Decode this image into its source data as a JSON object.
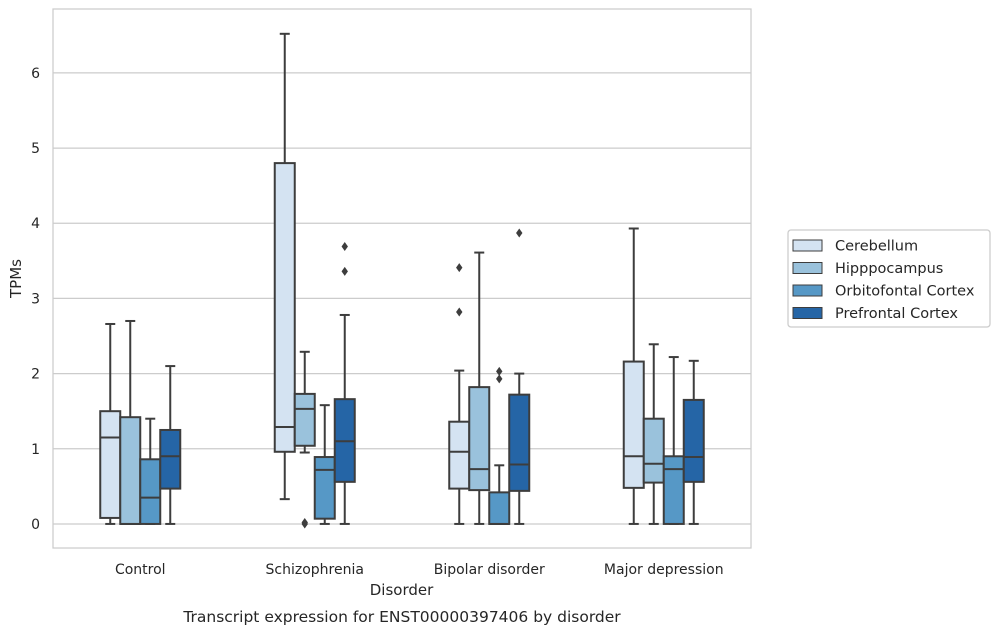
{
  "chart_data": {
    "type": "box",
    "xlabel": "Disorder",
    "ylabel": "TPMs",
    "caption": "Transcript expression for ENST00000397406 by disorder",
    "categories": [
      "Control",
      "Schizophrenia",
      "Bipolar disorder",
      "Major depression"
    ],
    "ylim": [
      -0.32,
      6.85
    ],
    "yticks": [
      "0",
      "1",
      "2",
      "3",
      "4",
      "5",
      "6"
    ],
    "grid": "horizontal",
    "legend_position": "right",
    "series": [
      {
        "name": "Cerebellum",
        "color": "#d4e3f2",
        "boxes": [
          {
            "whislo": 0.0,
            "q1": 0.08,
            "med": 1.15,
            "q3": 1.5,
            "whishi": 2.66,
            "fliers": []
          },
          {
            "whislo": 0.33,
            "q1": 0.96,
            "med": 1.29,
            "q3": 4.8,
            "whishi": 6.52,
            "fliers": []
          },
          {
            "whislo": 0.0,
            "q1": 0.47,
            "med": 0.96,
            "q3": 1.36,
            "whishi": 2.04,
            "fliers": [
              2.82,
              3.41
            ]
          },
          {
            "whislo": 0.0,
            "q1": 0.48,
            "med": 0.9,
            "q3": 2.16,
            "whishi": 3.93,
            "fliers": []
          }
        ]
      },
      {
        "name": "Hipppocampus",
        "color": "#9ac2dc",
        "boxes": [
          {
            "whislo": 0.0,
            "q1": 0.0,
            "med": 0.0,
            "q3": 1.42,
            "whishi": 2.7,
            "fliers": []
          },
          {
            "whislo": 0.95,
            "q1": 1.04,
            "med": 1.53,
            "q3": 1.73,
            "whishi": 2.29,
            "fliers": [
              0.0,
              0.02
            ]
          },
          {
            "whislo": 0.0,
            "q1": 0.45,
            "med": 0.73,
            "q3": 1.82,
            "whishi": 3.61,
            "fliers": []
          },
          {
            "whislo": 0.0,
            "q1": 0.55,
            "med": 0.8,
            "q3": 1.4,
            "whishi": 2.39,
            "fliers": []
          }
        ]
      },
      {
        "name": "Orbitofontal Cortex",
        "color": "#5698c6",
        "boxes": [
          {
            "whislo": 0.0,
            "q1": 0.0,
            "med": 0.35,
            "q3": 0.86,
            "whishi": 1.4,
            "fliers": []
          },
          {
            "whislo": 0.0,
            "q1": 0.07,
            "med": 0.72,
            "q3": 0.89,
            "whishi": 1.58,
            "fliers": []
          },
          {
            "whislo": 0.0,
            "q1": 0.0,
            "med": 0.0,
            "q3": 0.42,
            "whishi": 0.78,
            "fliers": [
              1.93,
              2.03
            ]
          },
          {
            "whislo": 0.0,
            "q1": 0.0,
            "med": 0.73,
            "q3": 0.9,
            "whishi": 2.22,
            "fliers": []
          }
        ]
      },
      {
        "name": "Prefrontal Cortex",
        "color": "#2565a6",
        "boxes": [
          {
            "whislo": 0.0,
            "q1": 0.47,
            "med": 0.9,
            "q3": 1.25,
            "whishi": 2.1,
            "fliers": []
          },
          {
            "whislo": 0.0,
            "q1": 0.56,
            "med": 1.1,
            "q3": 1.66,
            "whishi": 2.78,
            "fliers": [
              3.36,
              3.69
            ]
          },
          {
            "whislo": 0.0,
            "q1": 0.44,
            "med": 0.79,
            "q3": 1.72,
            "whishi": 2.0,
            "fliers": [
              3.87
            ]
          },
          {
            "whislo": 0.0,
            "q1": 0.56,
            "med": 0.89,
            "q3": 1.65,
            "whishi": 2.17,
            "fliers": []
          }
        ]
      }
    ]
  }
}
